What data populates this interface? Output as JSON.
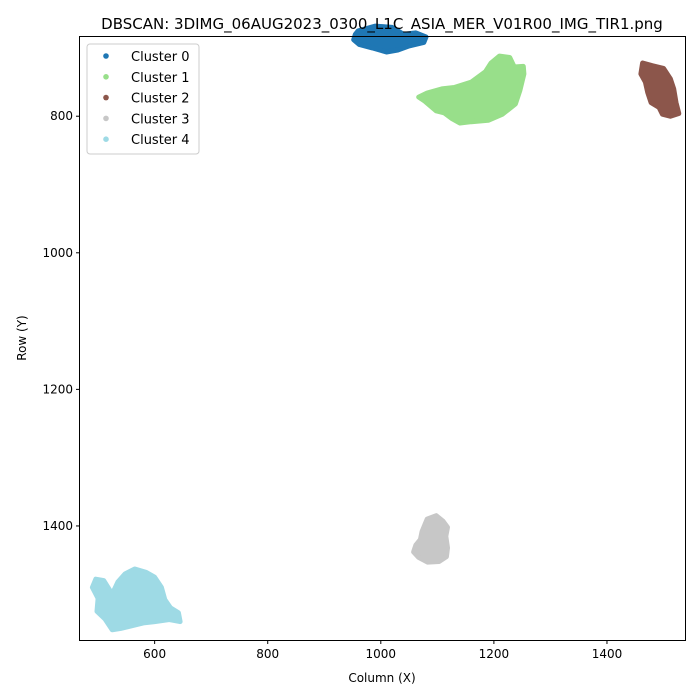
{
  "chart_data": {
    "type": "scatter",
    "title": "DBSCAN: 3DIMG_06AUG2023_0300_L1C_ASIA_MER_V01R00_IMG_TIR1.png",
    "xlabel": "Column (X)",
    "ylabel": "Row (Y)",
    "xlim": [
      468,
      1538
    ],
    "ylim": [
      1567,
      684
    ],
    "y_inverted": true,
    "grid": false,
    "legend_position": "top-left",
    "x_ticks": [
      600,
      800,
      1000,
      1200,
      1400
    ],
    "y_ticks": [
      800,
      1000,
      1200,
      1400
    ],
    "series": [
      {
        "name": "Cluster 0",
        "color": "#1f77b4",
        "outline": [
          [
            960,
            675
          ],
          [
            990,
            668
          ],
          [
            1020,
            670
          ],
          [
            1040,
            680
          ],
          [
            1062,
            678
          ],
          [
            1080,
            684
          ],
          [
            1076,
            692
          ],
          [
            1050,
            697
          ],
          [
            1030,
            703
          ],
          [
            1010,
            706
          ],
          [
            985,
            700
          ],
          [
            962,
            695
          ],
          [
            952,
            688
          ],
          [
            955,
            680
          ]
        ]
      },
      {
        "name": "Cluster 1",
        "color": "#98df8a",
        "outline": [
          [
            1160,
            750
          ],
          [
            1185,
            735
          ],
          [
            1195,
            722
          ],
          [
            1210,
            712
          ],
          [
            1228,
            714
          ],
          [
            1236,
            728
          ],
          [
            1252,
            727
          ],
          [
            1253,
            738
          ],
          [
            1246,
            762
          ],
          [
            1238,
            782
          ],
          [
            1215,
            797
          ],
          [
            1190,
            806
          ],
          [
            1160,
            808
          ],
          [
            1140,
            810
          ],
          [
            1125,
            803
          ],
          [
            1112,
            795
          ],
          [
            1098,
            792
          ],
          [
            1078,
            778
          ],
          [
            1067,
            772
          ],
          [
            1082,
            766
          ],
          [
            1108,
            760
          ],
          [
            1130,
            758
          ]
        ]
      },
      {
        "name": "Cluster 2",
        "color": "#8c564b",
        "outline": [
          [
            1463,
            722
          ],
          [
            1480,
            726
          ],
          [
            1500,
            730
          ],
          [
            1512,
            745
          ],
          [
            1518,
            760
          ],
          [
            1522,
            780
          ],
          [
            1527,
            796
          ],
          [
            1512,
            800
          ],
          [
            1498,
            797
          ],
          [
            1492,
            787
          ],
          [
            1478,
            780
          ],
          [
            1472,
            765
          ],
          [
            1468,
            750
          ],
          [
            1460,
            738
          ]
        ]
      },
      {
        "name": "Cluster 3",
        "color": "#c7c7c7",
        "outline": [
          [
            1082,
            1390
          ],
          [
            1098,
            1385
          ],
          [
            1110,
            1393
          ],
          [
            1118,
            1402
          ],
          [
            1115,
            1415
          ],
          [
            1118,
            1432
          ],
          [
            1116,
            1445
          ],
          [
            1103,
            1452
          ],
          [
            1083,
            1453
          ],
          [
            1067,
            1446
          ],
          [
            1058,
            1438
          ],
          [
            1062,
            1428
          ],
          [
            1070,
            1420
          ],
          [
            1073,
            1408
          ]
        ]
      },
      {
        "name": "Cluster 4",
        "color": "#9edae5",
        "outline": [
          [
            525,
            1500
          ],
          [
            535,
            1482
          ],
          [
            548,
            1470
          ],
          [
            565,
            1463
          ],
          [
            585,
            1468
          ],
          [
            600,
            1475
          ],
          [
            612,
            1490
          ],
          [
            618,
            1508
          ],
          [
            628,
            1520
          ],
          [
            642,
            1527
          ],
          [
            645,
            1540
          ],
          [
            626,
            1537
          ],
          [
            600,
            1540
          ],
          [
            580,
            1542
          ],
          [
            560,
            1546
          ],
          [
            540,
            1550
          ],
          [
            525,
            1552
          ],
          [
            512,
            1536
          ],
          [
            498,
            1525
          ],
          [
            500,
            1506
          ],
          [
            490,
            1490
          ],
          [
            496,
            1478
          ],
          [
            510,
            1480
          ]
        ]
      }
    ]
  }
}
